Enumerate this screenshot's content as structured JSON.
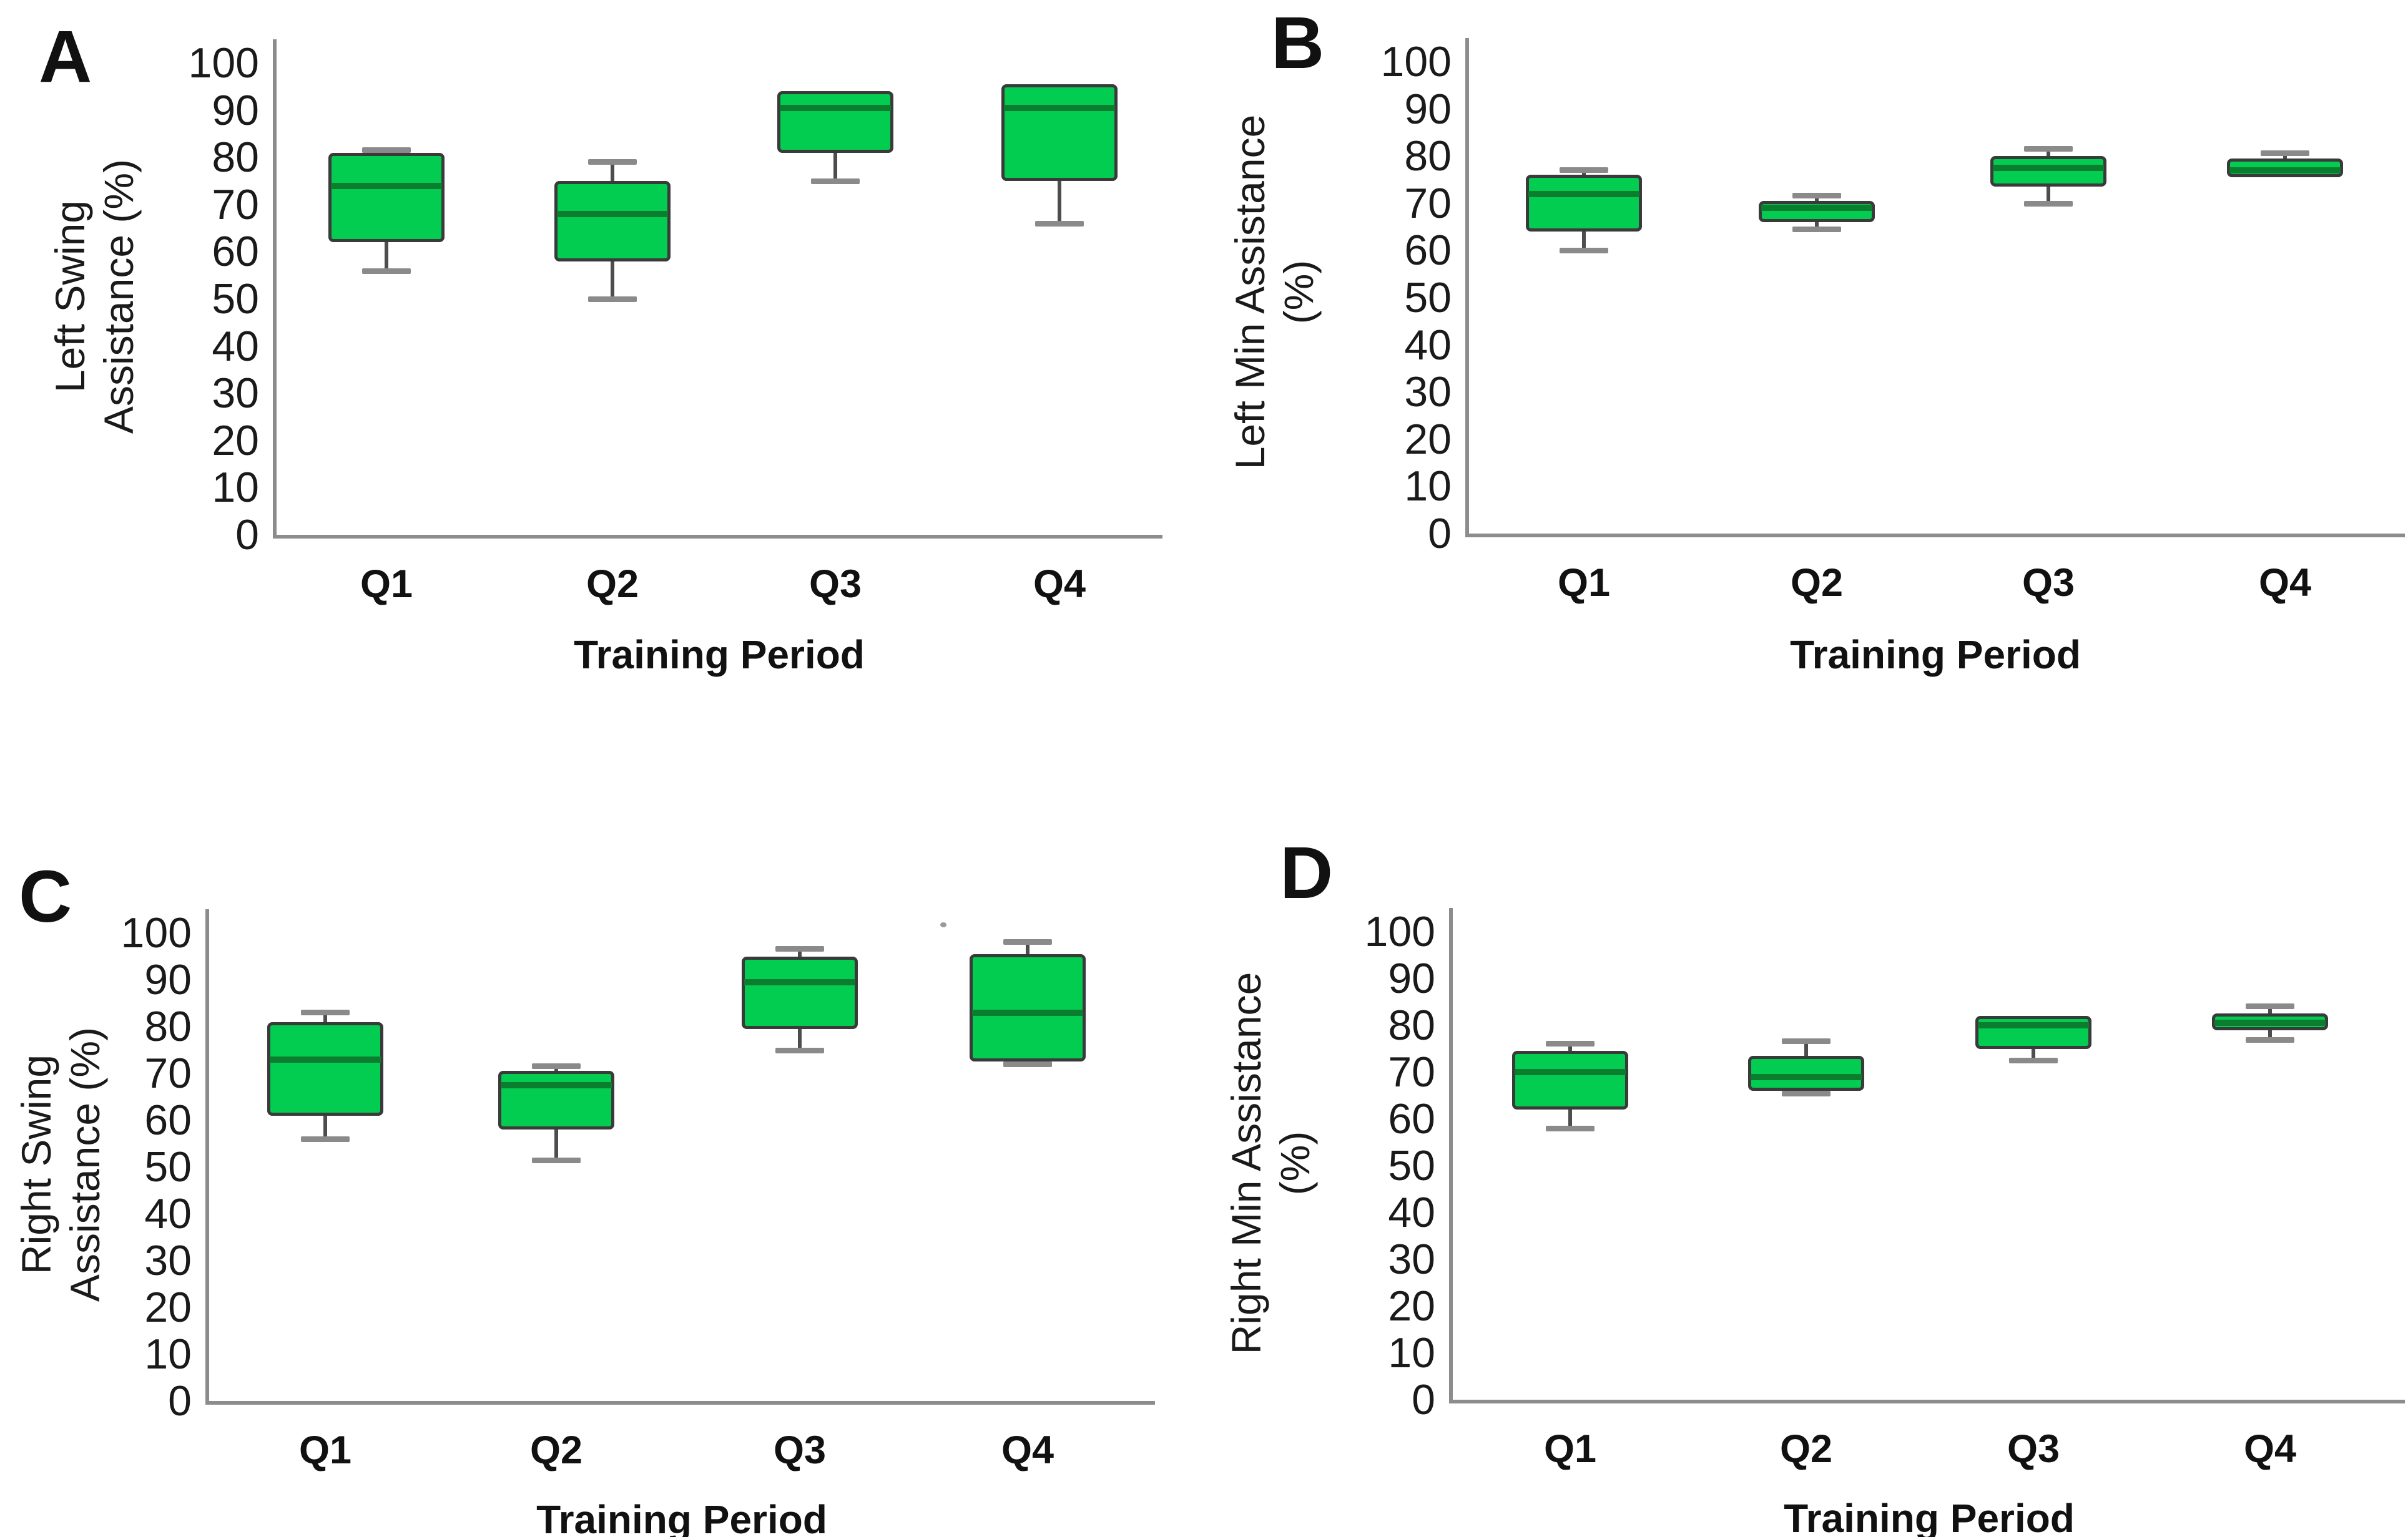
{
  "figure": {
    "background": "#ffffff",
    "box_fill": "#03cd51",
    "median_color": "#0b7d2f",
    "axis_color": "#8c8c8c",
    "whisker_stem_color": "#4d4d4d",
    "whisker_cap_color": "#8a8a8a",
    "box_border_color": "#3a3a3a"
  },
  "chart_data": [
    {
      "type": "boxplot",
      "panel_label": "A",
      "ylabel_lines": [
        "Left Swing",
        "Assistance (%)"
      ],
      "xlabel": "Training Period",
      "categories": [
        "Q1",
        "Q2",
        "Q3",
        "Q4"
      ],
      "ylim": [
        0,
        100
      ],
      "yticks": [
        0,
        10,
        20,
        30,
        40,
        50,
        60,
        70,
        80,
        90,
        100
      ],
      "grid": false,
      "series": [
        {
          "category": "Q1",
          "min": 56,
          "q1": 62,
          "median": 74,
          "q3": 81,
          "max": 81.5
        },
        {
          "category": "Q2",
          "min": 50,
          "q1": 58,
          "median": 68,
          "q3": 75,
          "max": 79
        },
        {
          "category": "Q3",
          "min": 75,
          "q1": 81,
          "median": 90.5,
          "q3": 94,
          "max": 94
        },
        {
          "category": "Q4",
          "min": 66,
          "q1": 75,
          "median": 90.5,
          "q3": 95.5,
          "max": 95.5
        }
      ]
    },
    {
      "type": "boxplot",
      "panel_label": "B",
      "ylabel_lines": [
        "Left Min Assistance",
        "(%)"
      ],
      "xlabel": "Training Period",
      "categories": [
        "Q1",
        "Q2",
        "Q3",
        "Q4"
      ],
      "ylim": [
        0,
        100
      ],
      "yticks": [
        0,
        10,
        20,
        30,
        40,
        50,
        60,
        70,
        80,
        90,
        100
      ],
      "grid": false,
      "series": [
        {
          "category": "Q1",
          "min": 60,
          "q1": 64,
          "median": 72,
          "q3": 76,
          "max": 77
        },
        {
          "category": "Q2",
          "min": 64.5,
          "q1": 66,
          "median": 69,
          "q3": 70.5,
          "max": 71.5
        },
        {
          "category": "Q3",
          "min": 70,
          "q1": 73.5,
          "median": 77.5,
          "q3": 80,
          "max": 81.5
        },
        {
          "category": "Q4",
          "min": 75.5,
          "q1": 75.5,
          "median": 77,
          "q3": 79.5,
          "max": 80.5
        }
      ]
    },
    {
      "type": "boxplot",
      "panel_label": "C",
      "ylabel_lines": [
        "Right Swing",
        "Assistance (%)"
      ],
      "xlabel": "Training Period",
      "categories": [
        "Q1",
        "Q2",
        "Q3",
        "Q4"
      ],
      "ylim": [
        0,
        100
      ],
      "yticks": [
        0,
        10,
        20,
        30,
        40,
        50,
        60,
        70,
        80,
        90,
        100
      ],
      "grid": false,
      "series": [
        {
          "category": "Q1",
          "min": 56,
          "q1": 61,
          "median": 73,
          "q3": 81,
          "max": 83
        },
        {
          "category": "Q2",
          "min": 51.5,
          "q1": 58,
          "median": 67.5,
          "q3": 70.5,
          "max": 71.5
        },
        {
          "category": "Q3",
          "min": 75,
          "q1": 79.5,
          "median": 89.5,
          "q3": 95,
          "max": 96.5
        },
        {
          "category": "Q4",
          "min": 72,
          "q1": 72.5,
          "median": 83,
          "q3": 95.5,
          "max": 98
        }
      ]
    },
    {
      "type": "boxplot",
      "panel_label": "D",
      "ylabel_lines": [
        "Right Min Assistance",
        "(%)"
      ],
      "xlabel": "Training Period",
      "categories": [
        "Q1",
        "Q2",
        "Q3",
        "Q4"
      ],
      "ylim": [
        0,
        100
      ],
      "yticks": [
        0,
        10,
        20,
        30,
        40,
        50,
        60,
        70,
        80,
        90,
        100
      ],
      "grid": false,
      "series": [
        {
          "category": "Q1",
          "min": 58,
          "q1": 62,
          "median": 70,
          "q3": 74.5,
          "max": 76
        },
        {
          "category": "Q2",
          "min": 65.5,
          "q1": 66,
          "median": 69,
          "q3": 73.5,
          "max": 76.5
        },
        {
          "category": "Q3",
          "min": 72.5,
          "q1": 75,
          "median": 80,
          "q3": 82,
          "max": 82
        },
        {
          "category": "Q4",
          "min": 77,
          "q1": 79,
          "median": 80.5,
          "q3": 82.5,
          "max": 84
        }
      ]
    }
  ]
}
